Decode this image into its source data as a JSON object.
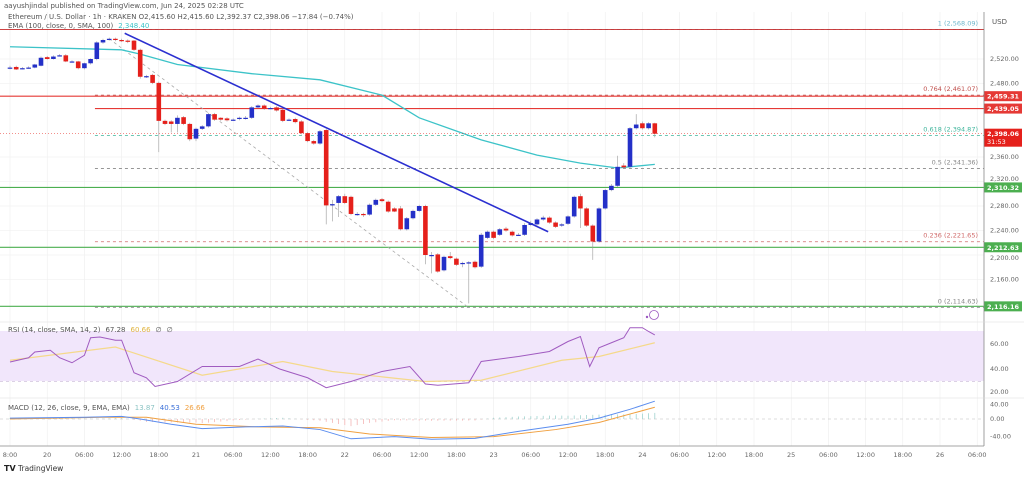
{
  "header": {
    "published": "aayushjindal published on TradingView.com, Jun 24, 2025 02:28 UTC",
    "symbol_legend": "Ethereum / U.S. Dollar · 1h · KRAKEN  O2,415.60 H2,415.60 L2,392.37 C2,398.06 −17.84 (−0.74%)",
    "ema_legend": "EMA (100, close, 0, SMA, 100)",
    "ema_value": "2,348.40"
  },
  "footer": {
    "brand": "TradingView",
    "brand_logo": "TV"
  },
  "colors": {
    "up": "#2430c8",
    "down": "#e5201b",
    "ema": "#3cc3c8",
    "trendline": "#2b2fd0",
    "support": "#4caf50",
    "resistance": "#e53935",
    "rsi": "#a05bc0",
    "rsi_ma": "#f5d98a",
    "rsi_band": "#f1e6fb",
    "macd": "#5b8def",
    "signal": "#f0a040",
    "hist": "#a8c8c8"
  },
  "chart_data": [
    {
      "type": "candlestick",
      "currency_label": "USD",
      "x_tick_labels": [
        "8:00",
        "20",
        "06:00",
        "12:00",
        "18:00",
        "21",
        "06:00",
        "12:00",
        "18:00",
        "22",
        "06:00",
        "12:00",
        "18:00",
        "23",
        "06:00",
        "12:00",
        "18:00",
        "24",
        "06:00",
        "12:00",
        "18:00",
        "25",
        "06:00",
        "12:00",
        "18:00",
        "26",
        "06:00"
      ],
      "y_tick_labels": [
        "2,520.00",
        "2,480.00",
        "2,360.00",
        "2,320.00",
        "2,280.00",
        "2,240.00",
        "2,200.00",
        "2,160.00"
      ],
      "y_ticks": [
        2520,
        2480,
        2360,
        2320,
        2280,
        2240,
        2200,
        2160
      ],
      "ylim": [
        2110,
        2570
      ],
      "candles_ohlc": [
        [
          2506,
          2509,
          2503,
          2506
        ],
        [
          2507,
          2509,
          2502,
          2503
        ],
        [
          2504,
          2507,
          2503,
          2505
        ],
        [
          2505,
          2508,
          2504,
          2506
        ],
        [
          2506,
          2512,
          2505,
          2511
        ],
        [
          2509,
          2524,
          2508,
          2522
        ],
        [
          2523,
          2525,
          2519,
          2520
        ],
        [
          2520,
          2526,
          2519,
          2524
        ],
        [
          2525,
          2528,
          2524,
          2526
        ],
        [
          2526,
          2528,
          2515,
          2516
        ],
        [
          2516,
          2518,
          2514,
          2516
        ],
        [
          2516,
          2517,
          2503,
          2505
        ],
        [
          2505,
          2514,
          2503,
          2513
        ],
        [
          2513,
          2521,
          2511,
          2520
        ],
        [
          2520,
          2549,
          2518,
          2547
        ],
        [
          2547,
          2553,
          2545,
          2551
        ],
        [
          2552,
          2555,
          2550,
          2553
        ],
        [
          2553,
          2555,
          2549,
          2551
        ],
        [
          2551,
          2553,
          2548,
          2550
        ],
        [
          2550,
          2552,
          2546,
          2548
        ],
        [
          2550,
          2551,
          2533,
          2535
        ],
        [
          2535,
          2537,
          2488,
          2491
        ],
        [
          2491,
          2494,
          2489,
          2492
        ],
        [
          2494,
          2496,
          2479,
          2481
        ],
        [
          2481,
          2483,
          2368,
          2419
        ],
        [
          2419,
          2421,
          2412,
          2414
        ],
        [
          2418,
          2420,
          2400,
          2414
        ],
        [
          2414,
          2428,
          2400,
          2424
        ],
        [
          2425,
          2427,
          2412,
          2414
        ],
        [
          2414,
          2416,
          2386,
          2389
        ],
        [
          2390,
          2408,
          2386,
          2406
        ],
        [
          2406,
          2412,
          2404,
          2410
        ],
        [
          2410,
          2432,
          2408,
          2430
        ],
        [
          2430,
          2432,
          2419,
          2421
        ],
        [
          2424,
          2425,
          2419,
          2421
        ],
        [
          2423,
          2425,
          2418,
          2420
        ],
        [
          2421,
          2423,
          2419,
          2421
        ],
        [
          2422,
          2426,
          2420,
          2424
        ],
        [
          2423,
          2427,
          2421,
          2424
        ],
        [
          2424,
          2443,
          2422,
          2441
        ],
        [
          2441,
          2446,
          2440,
          2444
        ],
        [
          2444,
          2446,
          2437,
          2439
        ],
        [
          2440,
          2442,
          2438,
          2440
        ],
        [
          2441,
          2443,
          2434,
          2436
        ],
        [
          2437,
          2439,
          2417,
          2419
        ],
        [
          2421,
          2423,
          2419,
          2421
        ],
        [
          2422,
          2424,
          2415,
          2417
        ],
        [
          2418,
          2420,
          2397,
          2399
        ],
        [
          2399,
          2401,
          2384,
          2386
        ],
        [
          2386,
          2388,
          2380,
          2382
        ],
        [
          2382,
          2404,
          2380,
          2402
        ],
        [
          2404,
          2406,
          2250,
          2281
        ],
        [
          2281,
          2290,
          2255,
          2283
        ],
        [
          2285,
          2298,
          2262,
          2296
        ],
        [
          2296,
          2300,
          2283,
          2285
        ],
        [
          2295,
          2297,
          2265,
          2267
        ],
        [
          2267,
          2270,
          2264,
          2267
        ],
        [
          2267,
          2269,
          2262,
          2266
        ],
        [
          2266,
          2284,
          2264,
          2282
        ],
        [
          2282,
          2292,
          2280,
          2290
        ],
        [
          2291,
          2293,
          2286,
          2288
        ],
        [
          2287,
          2289,
          2269,
          2271
        ],
        [
          2276,
          2278,
          2270,
          2271
        ],
        [
          2276,
          2280,
          2240,
          2242
        ],
        [
          2242,
          2262,
          2240,
          2260
        ],
        [
          2260,
          2274,
          2258,
          2272
        ],
        [
          2272,
          2282,
          2270,
          2280
        ],
        [
          2280,
          2282,
          2185,
          2200
        ],
        [
          2200,
          2205,
          2170,
          2200
        ],
        [
          2201,
          2203,
          2171,
          2173
        ],
        [
          2175,
          2199,
          2173,
          2197
        ],
        [
          2198,
          2205,
          2193,
          2195
        ],
        [
          2194,
          2196,
          2182,
          2184
        ],
        [
          2186,
          2189,
          2180,
          2187
        ],
        [
          2188,
          2190,
          2121,
          2188
        ],
        [
          2189,
          2191,
          2178,
          2180
        ],
        [
          2181,
          2236,
          2179,
          2233
        ],
        [
          2228,
          2240,
          2226,
          2238
        ],
        [
          2238,
          2240,
          2226,
          2228
        ],
        [
          2233,
          2244,
          2231,
          2242
        ],
        [
          2243,
          2246,
          2238,
          2240
        ],
        [
          2238,
          2240,
          2230,
          2232
        ],
        [
          2233,
          2236,
          2231,
          2233
        ],
        [
          2233,
          2252,
          2231,
          2249
        ],
        [
          2249,
          2256,
          2247,
          2252
        ],
        [
          2250,
          2260,
          2248,
          2258
        ],
        [
          2258,
          2264,
          2256,
          2261
        ],
        [
          2261,
          2263,
          2251,
          2253
        ],
        [
          2253,
          2255,
          2244,
          2246
        ],
        [
          2248,
          2252,
          2246,
          2250
        ],
        [
          2251,
          2265,
          2249,
          2263
        ],
        [
          2263,
          2297,
          2261,
          2295
        ],
        [
          2296,
          2300,
          2244,
          2276
        ],
        [
          2276,
          2278,
          2246,
          2248
        ],
        [
          2248,
          2250,
          2192,
          2222
        ],
        [
          2222,
          2278,
          2220,
          2276
        ],
        [
          2276,
          2308,
          2274,
          2306
        ],
        [
          2306,
          2316,
          2304,
          2313
        ],
        [
          2313,
          2362,
          2311,
          2344
        ],
        [
          2346,
          2350,
          2341,
          2343
        ],
        [
          2344,
          2409,
          2342,
          2407
        ],
        [
          2407,
          2430,
          2405,
          2413
        ],
        [
          2415,
          2418,
          2405,
          2407
        ],
        [
          2407,
          2417,
          2405,
          2415
        ],
        [
          2415,
          2416,
          2392,
          2398
        ]
      ],
      "ema100": [
        [
          0,
          2540
        ],
        [
          18,
          2535
        ],
        [
          21,
          2528
        ],
        [
          27,
          2511
        ],
        [
          39,
          2496
        ],
        [
          50,
          2486
        ],
        [
          60,
          2461
        ],
        [
          66,
          2424
        ],
        [
          76,
          2388
        ],
        [
          85,
          2363
        ],
        [
          92,
          2350
        ],
        [
          98,
          2342
        ],
        [
          104,
          2348
        ]
      ],
      "trendline": [
        [
          18.5,
          2562
        ],
        [
          86.8,
          2238
        ]
      ],
      "fib_diagonal": [
        [
          16,
          2553
        ],
        [
          74,
          2114
        ]
      ],
      "fib_levels": [
        {
          "label": "1 (2,568.09)",
          "price": 2568.09,
          "color": "#6fb7cc"
        },
        {
          "label": "0.764 (2,461.07)",
          "price": 2461.07,
          "color": "#c0504d"
        },
        {
          "label": "0.618 (2,394.87)",
          "price": 2394.87,
          "color": "#3fb59c"
        },
        {
          "label": "0.5 (2,341.36)",
          "price": 2341.36,
          "color": "#888888"
        },
        {
          "label": "0.236 (2,221.65)",
          "price": 2221.65,
          "color": "#d06a6a"
        },
        {
          "label": "0 (2,114.63)",
          "price": 2114.63,
          "color": "#888888"
        }
      ],
      "horizontal_lines": [
        {
          "price": 2459.31,
          "label": "2,459.31",
          "color": "#e53935"
        },
        {
          "price": 2439.05,
          "label": "2,439.05",
          "color": "#e53935"
        },
        {
          "price": 2310.32,
          "label": "2,310.32",
          "color": "#4caf50"
        },
        {
          "price": 2212.63,
          "label": "2,212.63",
          "color": "#4caf50"
        },
        {
          "price": 2116.16,
          "label": "2,116.16",
          "color": "#4caf50"
        }
      ],
      "last_price": {
        "label": "2,398.06",
        "countdown": "31:53",
        "price": 2398.06
      }
    },
    {
      "type": "line",
      "legend": "RSI (14, close, SMA, 14, 2)",
      "values_shown": [
        "67.28",
        "60.66",
        "∅",
        "∅"
      ],
      "y_tick_labels": [
        "60.00",
        "40.00",
        "20.00"
      ],
      "y_ticks": [
        60,
        40,
        20
      ],
      "band": [
        30,
        70
      ],
      "rsi": [
        [
          0,
          45.6
        ],
        [
          3,
          49
        ],
        [
          4,
          53.6
        ],
        [
          6.5,
          55
        ],
        [
          8,
          49
        ],
        [
          10,
          45
        ],
        [
          12,
          51
        ],
        [
          13,
          65
        ],
        [
          14.5,
          65.6
        ],
        [
          17,
          63
        ],
        [
          18,
          63
        ],
        [
          20,
          37
        ],
        [
          22,
          33
        ],
        [
          23.4,
          26
        ],
        [
          27,
          30
        ],
        [
          31,
          42
        ],
        [
          37,
          42
        ],
        [
          40,
          48
        ],
        [
          43.5,
          40
        ],
        [
          48,
          33
        ],
        [
          51,
          25
        ],
        [
          55,
          30
        ],
        [
          60,
          38
        ],
        [
          64.5,
          42
        ],
        [
          67,
          28
        ],
        [
          69,
          27
        ],
        [
          74,
          29
        ],
        [
          76,
          46
        ],
        [
          82,
          50
        ],
        [
          87,
          54
        ],
        [
          90,
          62
        ],
        [
          92,
          66
        ],
        [
          93.5,
          42
        ],
        [
          95,
          57
        ],
        [
          97,
          61
        ],
        [
          99,
          65
        ],
        [
          100,
          73
        ],
        [
          102,
          73
        ],
        [
          103,
          70
        ],
        [
          104,
          67.28
        ]
      ],
      "rsi_ma": [
        [
          0,
          47
        ],
        [
          17,
          57.6
        ],
        [
          31,
          35
        ],
        [
          44,
          46
        ],
        [
          52,
          38
        ],
        [
          67,
          30
        ],
        [
          76,
          31
        ],
        [
          89,
          47
        ],
        [
          95,
          50
        ],
        [
          104,
          61
        ]
      ]
    },
    {
      "type": "line",
      "legend": "MACD (12, 26, close, 9, EMA, EMA)",
      "values_shown": [
        "13.87",
        "40.53",
        "26.66"
      ],
      "y_tick_labels": [
        "40.00",
        "0.00",
        "-40.00"
      ],
      "y_ticks": [
        40,
        0,
        -40
      ],
      "macd": [
        [
          0,
          2
        ],
        [
          12,
          4
        ],
        [
          18,
          6
        ],
        [
          21,
          0
        ],
        [
          26,
          -12
        ],
        [
          31,
          -22
        ],
        [
          38,
          -18
        ],
        [
          44,
          -16
        ],
        [
          50,
          -24
        ],
        [
          55,
          -45
        ],
        [
          62,
          -40
        ],
        [
          68,
          -46
        ],
        [
          75,
          -44
        ],
        [
          82,
          -28
        ],
        [
          90,
          -12
        ],
        [
          95,
          2
        ],
        [
          100,
          22
        ],
        [
          104,
          40.53
        ]
      ],
      "signal": [
        [
          0,
          0
        ],
        [
          15,
          4
        ],
        [
          22,
          4
        ],
        [
          30,
          -12
        ],
        [
          40,
          -18
        ],
        [
          50,
          -20
        ],
        [
          58,
          -34
        ],
        [
          68,
          -42
        ],
        [
          78,
          -40
        ],
        [
          88,
          -24
        ],
        [
          95,
          -8
        ],
        [
          104,
          26.66
        ]
      ]
    }
  ]
}
